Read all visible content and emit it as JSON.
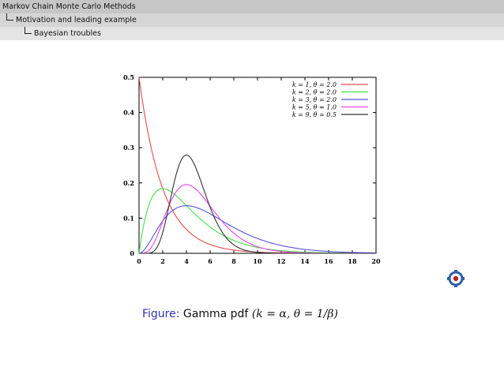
{
  "header": {
    "section": "Markov Chain Monte Carlo Methods",
    "subsection": "Motivation and leading example",
    "subsubsection": "Bayesian troubles"
  },
  "caption": {
    "label": "Figure:",
    "text": "Gamma pdf",
    "formula": "(k = α, θ = 1/β)"
  },
  "icons": {
    "nav": "emblem-icon"
  },
  "chart_data": {
    "type": "line",
    "title": "",
    "xlabel": "",
    "ylabel": "",
    "xlim": [
      0,
      20
    ],
    "ylim": [
      0,
      0.5
    ],
    "xticks": [
      "0",
      "2",
      "4",
      "6",
      "8",
      "10",
      "12",
      "14",
      "16",
      "18",
      "20"
    ],
    "yticks": [
      "0",
      "0.1",
      "0.2",
      "0.3",
      "0.4",
      "0.5"
    ],
    "grid": false,
    "legend": "top-right",
    "series": [
      {
        "name": "k = 1, θ = 2.0",
        "k": 1,
        "theta": 2.0,
        "color": "#e84a4a",
        "x": [
          0,
          1,
          2,
          3,
          4,
          6,
          8,
          10,
          12,
          16,
          20
        ],
        "y": [
          0.5,
          0.303,
          0.184,
          0.112,
          0.068,
          0.025,
          0.009,
          0.003,
          0.001,
          0.0002,
          0.0
        ]
      },
      {
        "name": "k = 2, θ = 2.0",
        "k": 2,
        "theta": 2.0,
        "color": "#44e044",
        "x": [
          0,
          1,
          2,
          3,
          4,
          6,
          8,
          10,
          12,
          16,
          20
        ],
        "y": [
          0.0,
          0.152,
          0.184,
          0.167,
          0.135,
          0.075,
          0.037,
          0.017,
          0.007,
          0.001,
          0.0
        ]
      },
      {
        "name": "k = 3, θ = 2.0",
        "k": 3,
        "theta": 2.0,
        "color": "#5555dd",
        "x": [
          0,
          1,
          2,
          3,
          4,
          6,
          8,
          10,
          12,
          16,
          20
        ],
        "y": [
          0.0,
          0.038,
          0.092,
          0.126,
          0.135,
          0.112,
          0.073,
          0.042,
          0.022,
          0.005,
          0.001
        ]
      },
      {
        "name": "k = 5, θ = 1.0",
        "k": 5,
        "theta": 1.0,
        "color": "#e845e8",
        "x": [
          0,
          1,
          2,
          3,
          4,
          5,
          6,
          8,
          10,
          12,
          16
        ],
        "y": [
          0.0,
          0.015,
          0.09,
          0.168,
          0.195,
          0.175,
          0.134,
          0.057,
          0.019,
          0.005,
          0.0
        ]
      },
      {
        "name": "k = 9, θ = 0.5",
        "k": 9,
        "theta": 0.5,
        "color": "#333333",
        "x": [
          0,
          2,
          3,
          4,
          5,
          6,
          7,
          8,
          10,
          12
        ],
        "y": [
          0.0,
          0.04,
          0.17,
          0.279,
          0.227,
          0.12,
          0.047,
          0.015,
          0.001,
          0.0
        ]
      }
    ]
  }
}
